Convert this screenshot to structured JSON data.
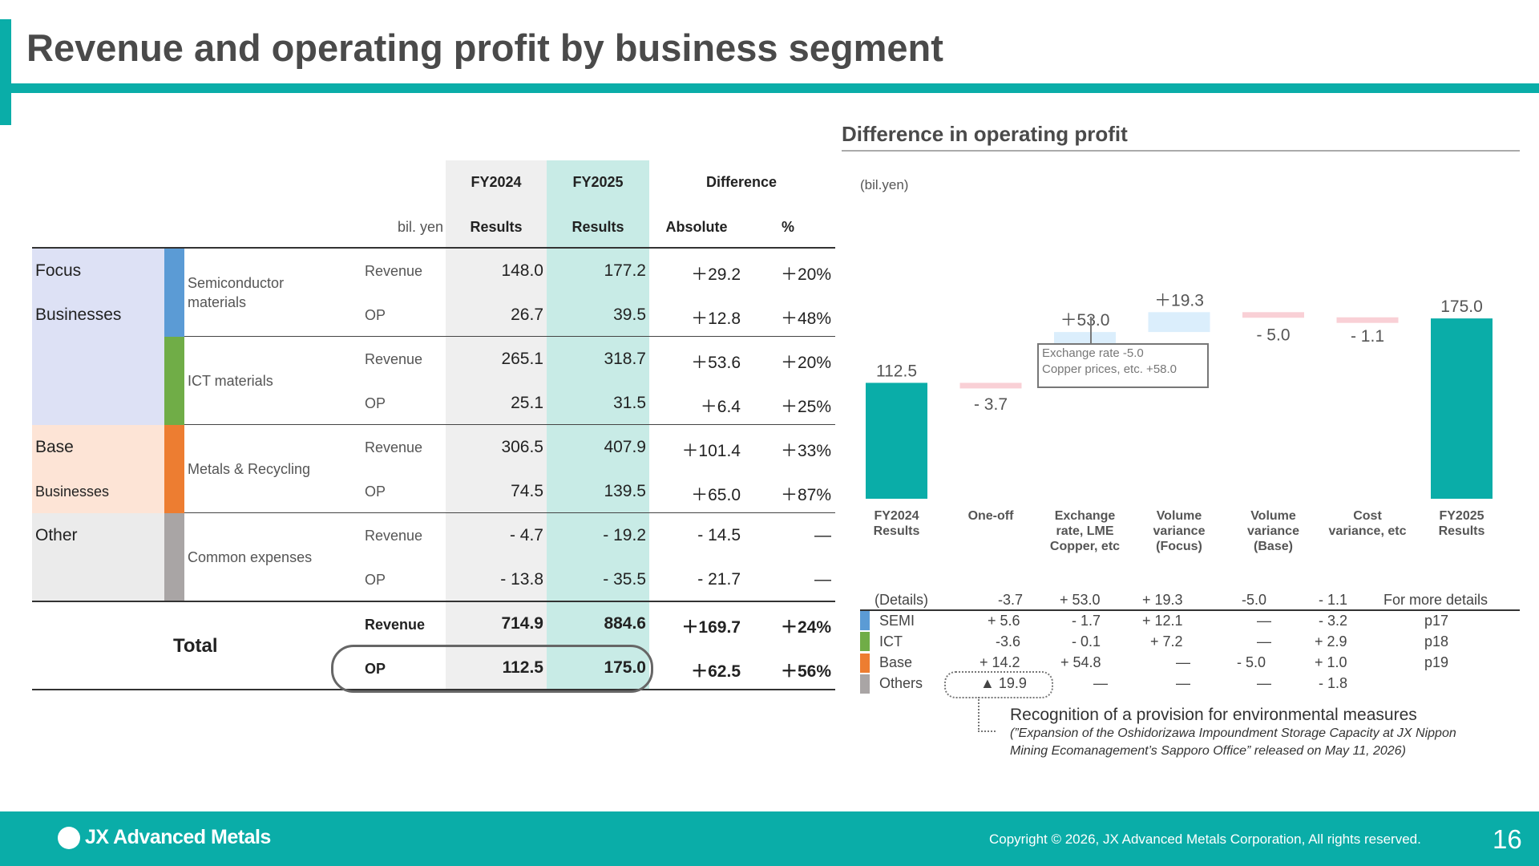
{
  "title": "Revenue and operating profit by business segment",
  "table": {
    "headers": {
      "fy2024": "FY2024",
      "fy2025": "FY2025",
      "difference": "Difference",
      "unit": "bil. yen",
      "results_2024": "Results",
      "results_2025": "Results",
      "absolute": "Absolute",
      "percent": "%"
    },
    "groups": [
      {
        "line1": "Focus",
        "line2": "Businesses",
        "color": "#dde1f5"
      },
      {
        "line1": "Base",
        "line2": "Businesses",
        "color": "#fde4d6"
      },
      {
        "line1": "Other",
        "line2": "",
        "color": "#ebebeb"
      }
    ],
    "segments": [
      {
        "name": "Semiconductor materials",
        "color": "#5b9bd5",
        "rows": [
          {
            "label": "Revenue",
            "fy2024": "148.0",
            "fy2025": "177.2",
            "abs": "＋29.2",
            "pct": "＋20%"
          },
          {
            "label": "OP",
            "fy2024": "26.7",
            "fy2025": "39.5",
            "abs": "＋12.8",
            "pct": "＋48%"
          }
        ]
      },
      {
        "name": "ICT materials",
        "color": "#70ad47",
        "rows": [
          {
            "label": "Revenue",
            "fy2024": "265.1",
            "fy2025": "318.7",
            "abs": "＋53.6",
            "pct": "＋20%"
          },
          {
            "label": "OP",
            "fy2024": "25.1",
            "fy2025": "31.5",
            "abs": "＋6.4",
            "pct": "＋25%"
          }
        ]
      },
      {
        "name": "Metals & Recycling",
        "color": "#ed7d31",
        "rows": [
          {
            "label": "Revenue",
            "fy2024": "306.5",
            "fy2025": "407.9",
            "abs": "＋101.4",
            "pct": "＋33%"
          },
          {
            "label": "OP",
            "fy2024": "74.5",
            "fy2025": "139.5",
            "abs": "＋65.0",
            "pct": "＋87%"
          }
        ]
      },
      {
        "name": "Common expenses",
        "color": "#a9a5a5",
        "rows": [
          {
            "label": "Revenue",
            "fy2024": "- 4.7",
            "fy2025": "- 19.2",
            "abs": "- 14.5",
            "pct": "―"
          },
          {
            "label": "OP",
            "fy2024": "- 13.8",
            "fy2025": "- 35.5",
            "abs": "- 21.7",
            "pct": "―"
          }
        ]
      }
    ],
    "total": {
      "label": "Total",
      "rows": [
        {
          "label": "Revenue",
          "fy2024": "714.9",
          "fy2025": "884.6",
          "abs": "＋169.7",
          "pct": "＋24%"
        },
        {
          "label": "OP",
          "fy2024": "112.5",
          "fy2025": "175.0",
          "abs": "＋62.5",
          "pct": "＋56%"
        }
      ]
    }
  },
  "chart": {
    "title": "Difference in operating profit",
    "unit": "(bil.yen)",
    "callout": {
      "line1": "Exchange  rate -5.0",
      "line2": "Copper prices, etc. +58.0"
    }
  },
  "chart_data": {
    "type": "bar",
    "subtype": "waterfall",
    "title": "Difference in operating profit",
    "ylabel": "(bil.yen)",
    "categories": [
      "FY2024 Results",
      "One-off",
      "Exchange rate, LME Copper, etc",
      "Volume variance (Focus)",
      "Volume variance (Base)",
      "Cost variance, etc",
      "FY2025 Results"
    ],
    "values": [
      112.5,
      -3.7,
      53.0,
      19.3,
      -5.0,
      -1.1,
      175.0
    ],
    "value_labels": [
      "112.5",
      "- 3.7",
      "＋53.0",
      "＋19.3",
      "- 5.0",
      "- 1.1",
      "175.0"
    ],
    "category_labels": [
      [
        "FY2024",
        "Results"
      ],
      [
        "One-off"
      ],
      [
        "Exchange",
        "rate, LME",
        "Copper, etc"
      ],
      [
        "Volume",
        "variance",
        "(Focus)"
      ],
      [
        "Volume",
        "variance",
        "(Base)"
      ],
      [
        "Cost",
        "variance, etc"
      ],
      [
        "FY2025",
        "Results"
      ]
    ],
    "colors": {
      "total": "#0aada8",
      "increase": "#dbeefc",
      "decrease": "#f9d0d6"
    },
    "ylim": [
      0,
      200
    ]
  },
  "details": {
    "header": [
      "(Details)",
      "-3.7",
      "+  53.0",
      "+  19.3",
      "-5.0",
      "-  1.1",
      "For more details"
    ],
    "rows": [
      {
        "name": "SEMI",
        "color": "#5b9bd5",
        "cells": [
          "+  5.6",
          "-  1.7",
          "+  12.1",
          "―",
          "-  3.2",
          "p17"
        ]
      },
      {
        "name": "ICT",
        "color": "#70ad47",
        "cells": [
          "-3.6",
          "-  0.1",
          "+  7.2",
          "―",
          "+  2.9",
          "p18"
        ]
      },
      {
        "name": "Base",
        "color": "#ed7d31",
        "cells": [
          "+  14.2",
          "+  54.8",
          "―",
          "-  5.0",
          "+  1.0",
          "p19"
        ]
      },
      {
        "name": "Others",
        "color": "#a9a5a5",
        "cells": [
          "▲ 19.9",
          "―",
          "―",
          "―",
          "-  1.8",
          ""
        ]
      }
    ],
    "note_title": "Recognition of a provision for environmental measures",
    "note_line1": "(”Expansion of the Oshidorizawa Impoundment  Storage Capacity at JX Nippon",
    "note_line2": "Mining Ecomanagement’s Sapporo Office” released on May 11, 2026)"
  },
  "footer": {
    "logo": "JX Advanced Metals",
    "copyright": "Copyright © 2026, JX Advanced Metals Corporation, All rights reserved.",
    "page": "16"
  }
}
